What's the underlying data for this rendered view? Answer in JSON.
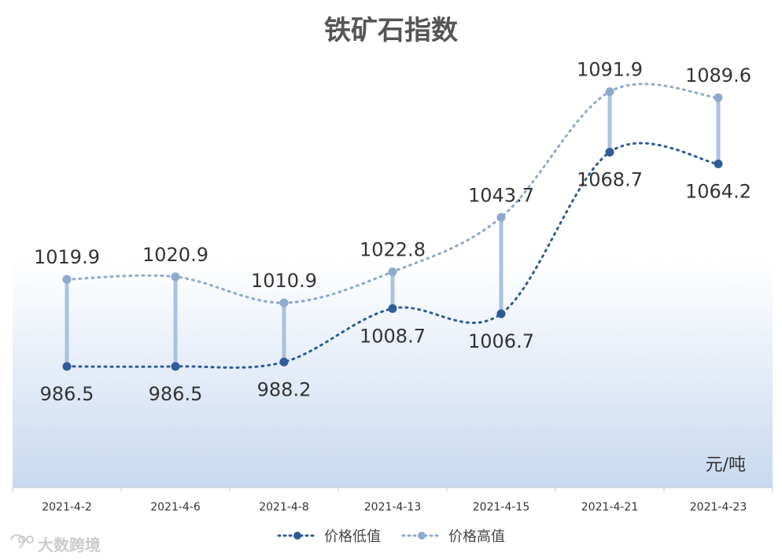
{
  "chart_data": {
    "type": "line",
    "title": "铁矿石指数",
    "unit_label": "元/吨",
    "categories": [
      "2021-4-2",
      "2021-4-6",
      "2021-4-8",
      "2021-4-13",
      "2021-4-15",
      "2021-4-21",
      "2021-4-23"
    ],
    "series": [
      {
        "name": "价格低值",
        "values": [
          986.5,
          986.5,
          988.2,
          1008.7,
          1006.7,
          1068.7,
          1064.2
        ],
        "color": "#2E5C9A",
        "labels": [
          "986.5",
          "986.5",
          "988.2",
          "1008.7",
          "1006.7",
          "1068.7",
          "1064.2"
        ]
      },
      {
        "name": "价格高值",
        "values": [
          1019.9,
          1020.9,
          1010.9,
          1022.8,
          1043.7,
          1091.9,
          1089.6
        ],
        "color": "#8FA9CF",
        "labels": [
          "1019.9",
          "1020.9",
          "1010.9",
          "1022.8",
          "1043.7",
          "1091.9",
          "1089.6"
        ]
      }
    ],
    "ylim": [
      940,
      1115
    ],
    "high_low_lines": true,
    "gridlines": false,
    "legend_position": "bottom",
    "background": "gradient white to light blue"
  },
  "watermark": {
    "text": "大数跨境",
    "icon": "watermark-logo-icon"
  }
}
